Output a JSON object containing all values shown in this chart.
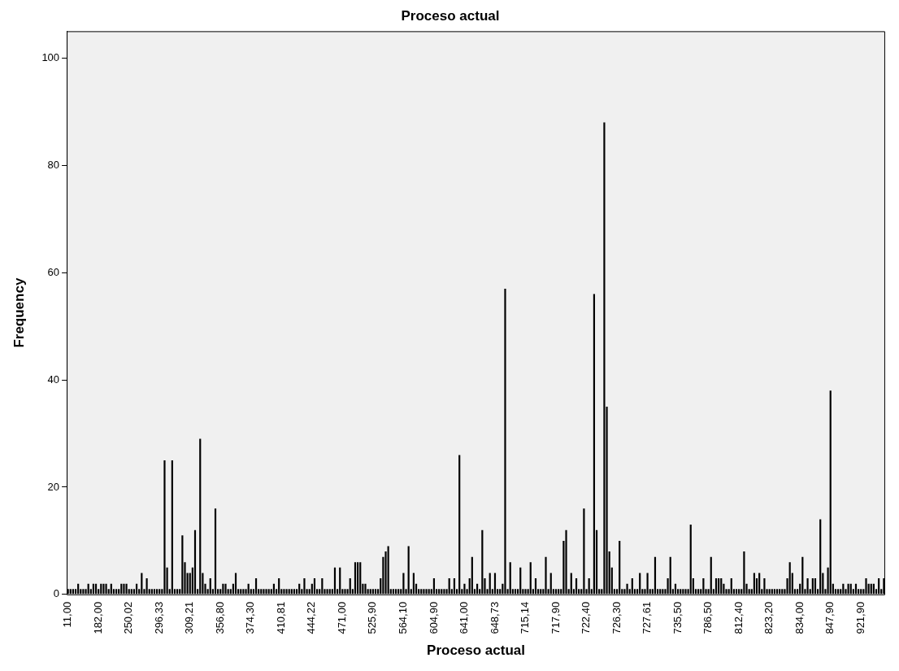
{
  "chart_data": {
    "type": "bar",
    "title": "Proceso actual",
    "xlabel": "Proceso actual",
    "ylabel": "Frequency",
    "color": "#000000",
    "ylim": [
      0,
      105
    ],
    "yticks": [
      0,
      20,
      40,
      60,
      80,
      100
    ],
    "categories": [
      "11,00",
      null,
      null,
      null,
      null,
      null,
      null,
      null,
      null,
      null,
      null,
      null,
      "182,00",
      null,
      null,
      null,
      null,
      null,
      null,
      null,
      null,
      null,
      null,
      null,
      "250,02",
      null,
      null,
      null,
      null,
      null,
      null,
      null,
      null,
      null,
      null,
      null,
      "296,33",
      null,
      null,
      null,
      null,
      null,
      null,
      null,
      null,
      null,
      null,
      null,
      "309,21",
      null,
      null,
      null,
      null,
      null,
      null,
      null,
      null,
      null,
      null,
      null,
      "356,80",
      null,
      null,
      null,
      null,
      null,
      null,
      null,
      null,
      null,
      null,
      null,
      "374,30",
      null,
      null,
      null,
      null,
      null,
      null,
      null,
      null,
      null,
      null,
      null,
      "410,81",
      null,
      null,
      null,
      null,
      null,
      null,
      null,
      null,
      null,
      null,
      null,
      "444,22",
      null,
      null,
      null,
      null,
      null,
      null,
      null,
      null,
      null,
      null,
      null,
      "471,00",
      null,
      null,
      null,
      null,
      null,
      null,
      null,
      null,
      null,
      null,
      null,
      "525,90",
      null,
      null,
      null,
      null,
      null,
      null,
      null,
      null,
      null,
      null,
      null,
      "564,10",
      null,
      null,
      null,
      null,
      null,
      null,
      null,
      null,
      null,
      null,
      null,
      "604,90",
      null,
      null,
      null,
      null,
      null,
      null,
      null,
      null,
      null,
      null,
      null,
      "641,00",
      null,
      null,
      null,
      null,
      null,
      null,
      null,
      null,
      null,
      null,
      null,
      "648,73",
      null,
      null,
      null,
      null,
      null,
      null,
      null,
      null,
      null,
      null,
      null,
      "715,14",
      null,
      null,
      null,
      null,
      null,
      null,
      null,
      null,
      null,
      null,
      null,
      "717,90",
      null,
      null,
      null,
      null,
      null,
      null,
      null,
      null,
      null,
      null,
      null,
      "722,40",
      null,
      null,
      null,
      null,
      null,
      null,
      null,
      null,
      null,
      null,
      null,
      "726,30",
      null,
      null,
      null,
      null,
      null,
      null,
      null,
      null,
      null,
      null,
      null,
      "727,61",
      null,
      null,
      null,
      null,
      null,
      null,
      null,
      null,
      null,
      null,
      null,
      "735,50",
      null,
      null,
      null,
      null,
      null,
      null,
      null,
      null,
      null,
      null,
      null,
      "786,50",
      null,
      null,
      null,
      null,
      null,
      null,
      null,
      null,
      null,
      null,
      null,
      "812,40",
      null,
      null,
      null,
      null,
      null,
      null,
      null,
      null,
      null,
      null,
      null,
      "823,20",
      null,
      null,
      null,
      null,
      null,
      null,
      null,
      null,
      null,
      null,
      null,
      "834,00",
      null,
      null,
      null,
      null,
      null,
      null,
      null,
      null,
      null,
      null,
      null,
      "847,90",
      null,
      null,
      null,
      null,
      null,
      null,
      null,
      null,
      null,
      null,
      null,
      "921,90",
      null,
      null,
      null,
      null,
      null,
      null,
      null,
      null,
      null
    ],
    "values": [
      1,
      1,
      1,
      1,
      2,
      1,
      1,
      1,
      2,
      1,
      2,
      2,
      1,
      2,
      2,
      2,
      1,
      2,
      1,
      1,
      1,
      2,
      2,
      2,
      1,
      1,
      1,
      2,
      1,
      4,
      1,
      3,
      1,
      1,
      1,
      1,
      1,
      1,
      25,
      5,
      1,
      25,
      1,
      1,
      1,
      11,
      6,
      4,
      4,
      5,
      12,
      1,
      29,
      4,
      2,
      1,
      3,
      1,
      16,
      1,
      1,
      2,
      2,
      1,
      1,
      2,
      4,
      1,
      1,
      1,
      1,
      2,
      1,
      1,
      3,
      1,
      1,
      1,
      1,
      1,
      1,
      2,
      1,
      3,
      1,
      1,
      1,
      1,
      1,
      1,
      1,
      2,
      1,
      3,
      1,
      1,
      2,
      3,
      1,
      1,
      3,
      1,
      1,
      1,
      1,
      5,
      1,
      5,
      1,
      1,
      1,
      3,
      1,
      6,
      6,
      6,
      2,
      2,
      1,
      1,
      1,
      1,
      1,
      3,
      7,
      8,
      9,
      1,
      1,
      1,
      1,
      1,
      4,
      1,
      9,
      1,
      4,
      2,
      1,
      1,
      1,
      1,
      1,
      1,
      3,
      1,
      1,
      1,
      1,
      1,
      3,
      1,
      3,
      1,
      26,
      1,
      2,
      1,
      3,
      7,
      1,
      2,
      1,
      12,
      3,
      1,
      4,
      1,
      4,
      1,
      1,
      2,
      57,
      1,
      6,
      1,
      1,
      1,
      5,
      1,
      1,
      1,
      6,
      1,
      3,
      1,
      1,
      1,
      7,
      1,
      4,
      1,
      1,
      1,
      1,
      10,
      12,
      1,
      4,
      1,
      3,
      1,
      1,
      16,
      1,
      3,
      1,
      56,
      12,
      1,
      1,
      88,
      35,
      8,
      5,
      1,
      1,
      10,
      1,
      1,
      2,
      1,
      3,
      1,
      1,
      4,
      1,
      1,
      4,
      1,
      1,
      7,
      1,
      1,
      1,
      1,
      3,
      7,
      1,
      2,
      1,
      1,
      1,
      1,
      1,
      13,
      3,
      1,
      1,
      1,
      3,
      1,
      1,
      7,
      1,
      3,
      3,
      3,
      2,
      1,
      1,
      3,
      1,
      1,
      1,
      1,
      8,
      2,
      1,
      1,
      4,
      3,
      4,
      1,
      3,
      1,
      1,
      1,
      1,
      1,
      1,
      1,
      1,
      3,
      6,
      4,
      1,
      1,
      2,
      7,
      1,
      3,
      1,
      3,
      3,
      1,
      14,
      4,
      1,
      5,
      38,
      2,
      1,
      1,
      1,
      2,
      1,
      2,
      2,
      1,
      2,
      1,
      1,
      1,
      3,
      2,
      2,
      2,
      1,
      3,
      1,
      3
    ]
  }
}
